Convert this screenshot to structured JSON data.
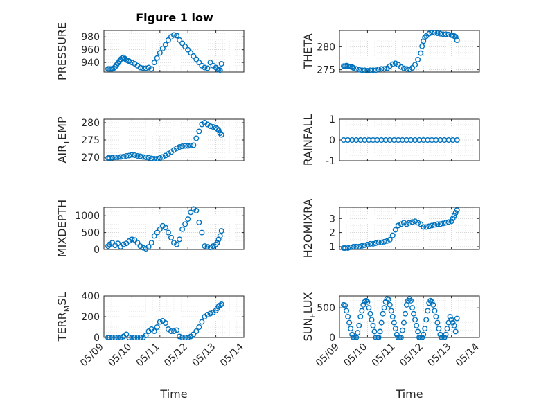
{
  "figure": {
    "title": "Figure 1 low",
    "marker_color": "#0072BD",
    "x_tick_labels": [
      "05/09",
      "05/10",
      "05/11",
      "05/12",
      "05/13",
      "05/14"
    ],
    "x_label": "Time"
  },
  "chart_data": [
    {
      "type": "scatter",
      "title": "Figure 1 low",
      "ylabel": "PRESSURE",
      "xlabel": "",
      "xlim": [
        0,
        5
      ],
      "ylim": [
        925,
        990
      ],
      "yticks": [
        940,
        960,
        980
      ],
      "grid": true,
      "x": [
        0.15,
        0.2,
        0.25,
        0.3,
        0.35,
        0.4,
        0.45,
        0.5,
        0.55,
        0.6,
        0.65,
        0.7,
        0.75,
        0.8,
        0.85,
        0.9,
        1.0,
        1.1,
        1.2,
        1.3,
        1.4,
        1.5,
        1.6,
        1.7,
        1.8,
        1.9,
        2.0,
        2.1,
        2.2,
        2.3,
        2.4,
        2.5,
        2.6,
        2.7,
        2.8,
        2.9,
        3.0,
        3.1,
        3.2,
        3.3,
        3.4,
        3.5,
        3.6,
        3.7,
        3.8,
        3.9,
        4.0,
        4.05,
        4.1,
        4.15,
        4.2
      ],
      "y": [
        930,
        930,
        930,
        930,
        931,
        933,
        936,
        939,
        942,
        945,
        947,
        948,
        946,
        944,
        943,
        942,
        940,
        938,
        935,
        932,
        931,
        931,
        932,
        930,
        940,
        947,
        955,
        962,
        968,
        975,
        980,
        983,
        982,
        975,
        970,
        965,
        960,
        955,
        950,
        945,
        940,
        935,
        932,
        931,
        940,
        935,
        932,
        930,
        929,
        928,
        938
      ]
    },
    {
      "type": "scatter",
      "ylabel": "THETA",
      "xlabel": "",
      "xlim": [
        0,
        5
      ],
      "ylim": [
        274.5,
        283.5
      ],
      "yticks": [
        275,
        280
      ],
      "grid": true,
      "x": [
        0.15,
        0.2,
        0.25,
        0.3,
        0.35,
        0.4,
        0.45,
        0.5,
        0.6,
        0.7,
        0.8,
        0.9,
        1.0,
        1.1,
        1.2,
        1.3,
        1.4,
        1.5,
        1.6,
        1.7,
        1.8,
        1.9,
        2.0,
        2.1,
        2.2,
        2.3,
        2.4,
        2.5,
        2.6,
        2.7,
        2.8,
        2.9,
        2.95,
        3.0,
        3.05,
        3.1,
        3.2,
        3.3,
        3.4,
        3.5,
        3.6,
        3.7,
        3.8,
        3.9,
        4.0,
        4.05,
        4.1,
        4.15,
        4.2
      ],
      "y": [
        275.8,
        275.8,
        275.9,
        275.8,
        275.7,
        275.7,
        275.6,
        275.4,
        275.2,
        275.0,
        274.9,
        274.9,
        274.8,
        274.9,
        274.9,
        274.9,
        275.1,
        275.2,
        275.2,
        275.3,
        275.8,
        276.2,
        276.4,
        276.1,
        275.6,
        275.3,
        275.2,
        275.1,
        275.4,
        276.1,
        277.2,
        278.6,
        280.1,
        281.2,
        282.0,
        282.3,
        282.8,
        283.0,
        283.0,
        282.9,
        282.8,
        282.7,
        282.7,
        282.6,
        282.5,
        282.4,
        282.3,
        282.1,
        281.4
      ]
    },
    {
      "type": "scatter",
      "ylabel": "AIR_TEMP",
      "xlabel": "",
      "xlim": [
        0,
        5
      ],
      "ylim": [
        269,
        281
      ],
      "yticks": [
        270,
        275,
        280
      ],
      "grid": true,
      "x": [
        0.15,
        0.2,
        0.3,
        0.4,
        0.5,
        0.6,
        0.7,
        0.8,
        0.9,
        1.0,
        1.1,
        1.2,
        1.3,
        1.4,
        1.5,
        1.6,
        1.7,
        1.8,
        1.9,
        2.0,
        2.1,
        2.2,
        2.3,
        2.4,
        2.5,
        2.6,
        2.7,
        2.8,
        2.9,
        3.0,
        3.1,
        3.2,
        3.3,
        3.4,
        3.5,
        3.6,
        3.7,
        3.8,
        3.9,
        4.0,
        4.05,
        4.1,
        4.15,
        4.2
      ],
      "y": [
        269.8,
        269.8,
        269.9,
        270.0,
        270.0,
        270.1,
        270.2,
        270.4,
        270.5,
        270.7,
        270.6,
        270.4,
        270.3,
        270.1,
        270.0,
        269.9,
        269.7,
        269.6,
        269.6,
        269.8,
        270.1,
        270.5,
        271.0,
        271.5,
        272.1,
        272.6,
        273.0,
        273.2,
        273.3,
        273.3,
        273.4,
        273.5,
        275.5,
        277.5,
        279.5,
        280.0,
        279.5,
        279.0,
        278.8,
        278.5,
        278.2,
        277.8,
        277.0,
        276.5
      ]
    },
    {
      "type": "scatter",
      "ylabel": "RAINFALL",
      "xlabel": "",
      "xlim": [
        0,
        5
      ],
      "ylim": [
        -1,
        1
      ],
      "yticks": [
        -1,
        0,
        1
      ],
      "grid": true,
      "x": [
        0.15,
        0.3,
        0.45,
        0.6,
        0.75,
        0.9,
        1.05,
        1.2,
        1.35,
        1.5,
        1.65,
        1.8,
        1.95,
        2.1,
        2.25,
        2.4,
        2.55,
        2.7,
        2.85,
        3.0,
        3.15,
        3.3,
        3.45,
        3.6,
        3.75,
        3.9,
        4.05,
        4.2
      ],
      "y": [
        0,
        0,
        0,
        0,
        0,
        0,
        0,
        0,
        0,
        0,
        0,
        0,
        0,
        0,
        0,
        0,
        0,
        0,
        0,
        0,
        0,
        0,
        0,
        0,
        0,
        0,
        0,
        0
      ]
    },
    {
      "type": "scatter",
      "ylabel": "MIXDEPTH",
      "xlabel": "",
      "xlim": [
        0,
        5
      ],
      "ylim": [
        0,
        1250
      ],
      "yticks": [
        0,
        500,
        1000
      ],
      "grid": true,
      "x": [
        0.15,
        0.2,
        0.3,
        0.4,
        0.5,
        0.6,
        0.7,
        0.8,
        0.9,
        1.0,
        1.1,
        1.2,
        1.3,
        1.4,
        1.5,
        1.6,
        1.7,
        1.8,
        1.9,
        2.0,
        2.1,
        2.2,
        2.3,
        2.4,
        2.5,
        2.6,
        2.7,
        2.8,
        2.9,
        3.0,
        3.1,
        3.2,
        3.3,
        3.4,
        3.5,
        3.6,
        3.7,
        3.8,
        3.9,
        4.0,
        4.05,
        4.1,
        4.15,
        4.2
      ],
      "y": [
        100,
        150,
        200,
        120,
        180,
        80,
        150,
        180,
        250,
        300,
        280,
        200,
        100,
        50,
        20,
        80,
        200,
        400,
        500,
        600,
        700,
        650,
        500,
        350,
        200,
        150,
        300,
        600,
        750,
        900,
        1100,
        1200,
        1150,
        800,
        500,
        100,
        80,
        60,
        100,
        150,
        200,
        300,
        400,
        550
      ]
    },
    {
      "type": "scatter",
      "ylabel": "H2OMIXRA",
      "xlabel": "",
      "xlim": [
        0,
        5
      ],
      "ylim": [
        0.8,
        3.8
      ],
      "yticks": [
        1,
        2,
        3
      ],
      "grid": true,
      "x": [
        0.15,
        0.2,
        0.3,
        0.4,
        0.5,
        0.6,
        0.7,
        0.8,
        0.9,
        1.0,
        1.1,
        1.2,
        1.3,
        1.4,
        1.5,
        1.6,
        1.7,
        1.8,
        1.9,
        2.0,
        2.1,
        2.2,
        2.3,
        2.4,
        2.5,
        2.6,
        2.7,
        2.8,
        2.9,
        3.0,
        3.1,
        3.2,
        3.3,
        3.4,
        3.5,
        3.6,
        3.7,
        3.8,
        3.9,
        4.0,
        4.05,
        4.1,
        4.15,
        4.2
      ],
      "y": [
        0.9,
        0.9,
        0.9,
        0.95,
        1.0,
        1.0,
        1.0,
        1.05,
        1.1,
        1.15,
        1.2,
        1.2,
        1.25,
        1.3,
        1.3,
        1.35,
        1.4,
        1.5,
        1.8,
        2.2,
        2.5,
        2.6,
        2.7,
        2.6,
        2.7,
        2.75,
        2.8,
        2.7,
        2.6,
        2.4,
        2.4,
        2.45,
        2.5,
        2.55,
        2.6,
        2.6,
        2.65,
        2.7,
        2.75,
        2.8,
        3.0,
        3.2,
        3.4,
        3.6
      ]
    },
    {
      "type": "scatter",
      "ylabel": "TERR_MSL",
      "xlabel": "Time",
      "xlim": [
        0,
        5
      ],
      "ylim": [
        0,
        400
      ],
      "yticks": [
        0,
        200,
        400
      ],
      "xtick_labels": [
        "05/09",
        "05/10",
        "05/11",
        "05/12",
        "05/13",
        "05/14"
      ],
      "grid": true,
      "x": [
        0.15,
        0.2,
        0.3,
        0.4,
        0.5,
        0.6,
        0.7,
        0.8,
        0.9,
        1.0,
        1.1,
        1.2,
        1.3,
        1.4,
        1.5,
        1.6,
        1.7,
        1.8,
        1.9,
        2.0,
        2.1,
        2.2,
        2.3,
        2.4,
        2.5,
        2.6,
        2.7,
        2.8,
        2.9,
        3.0,
        3.1,
        3.2,
        3.3,
        3.4,
        3.5,
        3.6,
        3.7,
        3.8,
        3.9,
        4.0,
        4.05,
        4.1,
        4.15,
        4.2
      ],
      "y": [
        0,
        0,
        0,
        0,
        0,
        0,
        10,
        30,
        0,
        0,
        0,
        0,
        0,
        0,
        20,
        60,
        80,
        60,
        100,
        150,
        160,
        140,
        80,
        60,
        60,
        70,
        10,
        0,
        0,
        0,
        10,
        30,
        60,
        100,
        150,
        200,
        220,
        230,
        240,
        260,
        280,
        300,
        310,
        320
      ]
    },
    {
      "type": "scatter",
      "ylabel": "SUN_FLUX",
      "xlabel": "Time",
      "xlim": [
        0,
        5
      ],
      "ylim": [
        0,
        700
      ],
      "yticks": [
        0,
        500
      ],
      "xtick_labels": [
        "05/09",
        "05/10",
        "05/11",
        "05/12",
        "05/13",
        "05/14"
      ],
      "grid": true,
      "x": [
        0.15,
        0.2,
        0.25,
        0.3,
        0.35,
        0.4,
        0.45,
        0.5,
        0.55,
        0.6,
        0.65,
        0.7,
        0.75,
        0.8,
        0.85,
        0.9,
        0.95,
        1.0,
        1.05,
        1.1,
        1.15,
        1.2,
        1.25,
        1.3,
        1.35,
        1.4,
        1.45,
        1.5,
        1.55,
        1.6,
        1.65,
        1.7,
        1.75,
        1.8,
        1.85,
        1.9,
        1.95,
        2.0,
        2.05,
        2.1,
        2.15,
        2.2,
        2.25,
        2.3,
        2.35,
        2.4,
        2.45,
        2.5,
        2.55,
        2.6,
        2.65,
        2.7,
        2.75,
        2.8,
        2.85,
        2.9,
        2.95,
        3.0,
        3.05,
        3.1,
        3.15,
        3.2,
        3.25,
        3.3,
        3.35,
        3.4,
        3.45,
        3.5,
        3.55,
        3.6,
        3.65,
        3.7,
        3.75,
        3.8,
        3.85,
        3.9,
        3.95,
        4.0,
        4.05,
        4.1,
        4.15,
        4.2
      ],
      "y": [
        550,
        540,
        450,
        350,
        250,
        150,
        50,
        0,
        0,
        0,
        80,
        200,
        350,
        450,
        550,
        600,
        620,
        600,
        500,
        400,
        300,
        200,
        100,
        0,
        0,
        0,
        100,
        250,
        400,
        500,
        600,
        650,
        640,
        550,
        450,
        350,
        250,
        150,
        50,
        0,
        0,
        0,
        120,
        250,
        400,
        550,
        620,
        650,
        620,
        500,
        400,
        300,
        200,
        100,
        0,
        0,
        0,
        50,
        150,
        300,
        450,
        580,
        620,
        600,
        550,
        450,
        350,
        250,
        150,
        50,
        0,
        0,
        0,
        50,
        150,
        250,
        350,
        300,
        250,
        200,
        100,
        320
      ]
    }
  ]
}
